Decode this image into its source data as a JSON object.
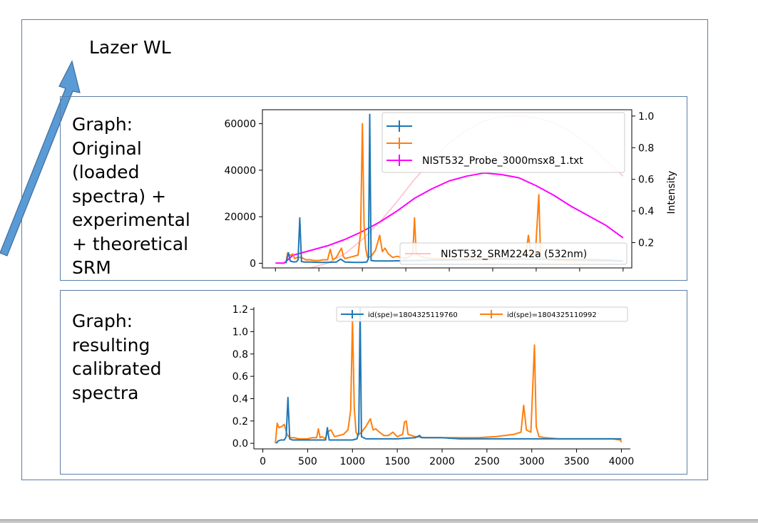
{
  "annotation": {
    "arrow_label": "Lazer WL"
  },
  "panels": {
    "top_label": "Graph:\nOriginal\n(loaded\nspectra)  +\nexperimental\n+ theoretical\nSRM",
    "bottom_label": "Graph:\nresulting\ncalibrated\nspectra"
  },
  "colors": {
    "border": "#5b7fa6",
    "arrow": "#5b9bd5",
    "blue_series": "#1f77b4",
    "orange_series": "#ff7f0e",
    "magenta_series": "#ff00ff",
    "pink_series": "#ffc0cb"
  },
  "chart_data": [
    {
      "type": "line",
      "y_left_ticks": [
        "0",
        "20000",
        "40000",
        "60000"
      ],
      "ylim_left": [
        -2000,
        66000
      ],
      "y_right_ticks": [
        "0.2",
        "0.4",
        "0.6",
        "0.8",
        "1.0"
      ],
      "ylim_right": [
        0.04,
        1.04
      ],
      "ylabel_right": "Intensity",
      "legend_upper": [
        "",
        "",
        "NIST532_Probe_3000msx8_1.txt"
      ],
      "legend_lower": [
        "NIST532_SRM2242a (532nm)"
      ],
      "grid": false,
      "series": [
        {
          "axis": "left",
          "color": "blue",
          "x": [
            120,
            150,
            170,
            200,
            240,
            260,
            280,
            300,
            330,
            400,
            500,
            600,
            700,
            750,
            800,
            900,
            1000,
            1050,
            1070,
            1085,
            1100,
            1150,
            1300,
            1500,
            1600,
            1800,
            2000,
            2200,
            2500,
            2800,
            3000,
            3200,
            3500,
            3800,
            4000
          ],
          "y": [
            0,
            4500,
            1000,
            600,
            600,
            1500,
            19500,
            800,
            500,
            500,
            400,
            400,
            500,
            1800,
            500,
            400,
            400,
            500,
            2000,
            64000,
            1200,
            1000,
            1000,
            1100,
            1200,
            1300,
            1400,
            1500,
            1700,
            1800,
            1800,
            1700,
            1600,
            1400,
            1000
          ]
        },
        {
          "axis": "left",
          "color": "orange",
          "x": [
            120,
            140,
            160,
            180,
            200,
            220,
            250,
            300,
            350,
            400,
            450,
            500,
            550,
            600,
            630,
            660,
            700,
            760,
            780,
            800,
            850,
            900,
            950,
            980,
            1000,
            1020,
            1040,
            1060,
            1100,
            1150,
            1200,
            1230,
            1260,
            1300,
            1350,
            1400,
            1450,
            1500,
            1580,
            1600,
            1620,
            1700,
            1800,
            2000,
            2200,
            2400,
            2600,
            2800,
            2880,
            2910,
            2940,
            2990,
            3030,
            3050,
            3080,
            3150,
            3300,
            3500,
            3700,
            3900,
            4000
          ],
          "y": [
            0,
            4500,
            3500,
            3500,
            4000,
            2000,
            2500,
            2500,
            1500,
            1500,
            1200,
            1200,
            1500,
            1500,
            6000,
            1500,
            2500,
            6500,
            3000,
            2000,
            2500,
            3000,
            3500,
            13000,
            60000,
            16000,
            6000,
            2500,
            3000,
            5500,
            12000,
            5000,
            6500,
            4000,
            2500,
            3000,
            2500,
            2000,
            4000,
            19500,
            4000,
            2500,
            2000,
            1800,
            2000,
            2000,
            2000,
            3000,
            4000,
            12000,
            4000,
            3500,
            29500,
            4000,
            2000,
            1500,
            1200,
            1200,
            1000,
            900,
            800
          ]
        },
        {
          "axis": "right",
          "color": "magenta",
          "x": [
            0,
            100,
            200,
            400,
            600,
            800,
            1000,
            1200,
            1400,
            1600,
            1800,
            2000,
            2200,
            2400,
            2600,
            2800,
            3000,
            3200,
            3400,
            3600,
            3800,
            4000
          ],
          "y": [
            0.07,
            0.07,
            0.12,
            0.15,
            0.18,
            0.22,
            0.27,
            0.33,
            0.4,
            0.48,
            0.54,
            0.59,
            0.62,
            0.64,
            0.63,
            0.61,
            0.56,
            0.5,
            0.43,
            0.37,
            0.31,
            0.23
          ]
        },
        {
          "axis": "right",
          "color": "pink",
          "x": [
            400,
            600,
            800,
            1000,
            1200,
            1400,
            1600,
            1800,
            2000,
            2200,
            2400,
            2600,
            2800,
            3000,
            3200,
            3400,
            3600,
            3800,
            4000
          ],
          "y": [
            0.04,
            0.07,
            0.13,
            0.22,
            0.33,
            0.46,
            0.6,
            0.72,
            0.83,
            0.91,
            0.97,
            0.995,
            1.0,
            0.99,
            0.96,
            0.9,
            0.82,
            0.72,
            0.62
          ]
        }
      ]
    },
    {
      "type": "line",
      "x_ticks": [
        "0",
        "500",
        "1000",
        "1500",
        "2000",
        "2500",
        "3000",
        "3500",
        "4000"
      ],
      "xlim": [
        -100,
        4100
      ],
      "y_ticks": [
        "0.0",
        "0.2",
        "0.4",
        "0.6",
        "0.8",
        "1.0",
        "1.2"
      ],
      "ylim": [
        -0.05,
        1.22
      ],
      "grid": false,
      "legend": [
        "id(spe)=1804325119760",
        "id(spe)=1804325110992"
      ],
      "series": [
        {
          "name": "id(spe)=1804325119760",
          "color": "blue",
          "x": [
            150,
            170,
            200,
            240,
            260,
            280,
            300,
            330,
            400,
            500,
            600,
            700,
            720,
            740,
            800,
            900,
            1000,
            1050,
            1070,
            1085,
            1100,
            1150,
            1300,
            1500,
            1700,
            1750,
            1770,
            1800,
            2000,
            2200,
            2500,
            2800,
            3000,
            3200,
            3500,
            3800,
            4000
          ],
          "y": [
            0.0,
            0.02,
            0.03,
            0.03,
            0.06,
            0.41,
            0.04,
            0.03,
            0.03,
            0.03,
            0.03,
            0.03,
            0.14,
            0.03,
            0.03,
            0.03,
            0.03,
            0.04,
            0.1,
            1.21,
            0.06,
            0.04,
            0.04,
            0.04,
            0.05,
            0.07,
            0.05,
            0.05,
            0.05,
            0.04,
            0.04,
            0.04,
            0.04,
            0.04,
            0.04,
            0.04,
            0.04
          ]
        },
        {
          "name": "id(spe)=1804325110992",
          "color": "orange",
          "x": [
            140,
            160,
            180,
            210,
            240,
            270,
            300,
            350,
            400,
            450,
            500,
            550,
            600,
            620,
            640,
            660,
            700,
            720,
            760,
            800,
            850,
            900,
            950,
            980,
            1000,
            1020,
            1040,
            1060,
            1100,
            1150,
            1200,
            1230,
            1260,
            1300,
            1350,
            1400,
            1450,
            1500,
            1560,
            1580,
            1600,
            1620,
            1700,
            1800,
            2000,
            2200,
            2400,
            2600,
            2800,
            2880,
            2910,
            2940,
            2990,
            3030,
            3050,
            3080,
            3150,
            3300,
            3500,
            3700,
            3900,
            3990,
            4000
          ],
          "y": [
            0.0,
            0.18,
            0.14,
            0.15,
            0.17,
            0.08,
            0.05,
            0.05,
            0.04,
            0.04,
            0.04,
            0.05,
            0.05,
            0.13,
            0.05,
            0.06,
            0.04,
            0.1,
            0.12,
            0.06,
            0.07,
            0.08,
            0.12,
            0.3,
            1.11,
            0.32,
            0.1,
            0.07,
            0.1,
            0.15,
            0.22,
            0.12,
            0.13,
            0.1,
            0.07,
            0.07,
            0.1,
            0.06,
            0.08,
            0.19,
            0.2,
            0.08,
            0.06,
            0.05,
            0.05,
            0.05,
            0.05,
            0.06,
            0.08,
            0.1,
            0.34,
            0.12,
            0.1,
            0.88,
            0.15,
            0.06,
            0.05,
            0.04,
            0.04,
            0.04,
            0.04,
            0.03,
            0.01
          ]
        }
      ]
    }
  ]
}
